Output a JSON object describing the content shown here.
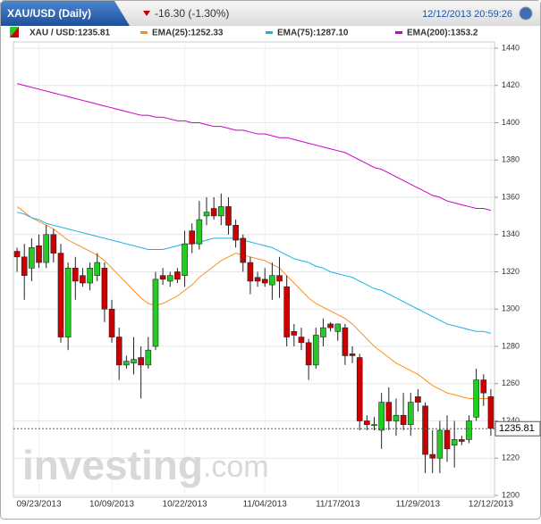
{
  "header": {
    "title": "XAU/USD (Daily)",
    "change": "-16.30 (-1.30%)",
    "timestamp": "12/12/2013 20:59:26"
  },
  "chart_data": {
    "type": "candlestick",
    "legend": [
      {
        "text": "XAU / USD:1235.81",
        "color": "#cc0000"
      },
      {
        "text": "EMA(25):1252.33",
        "color": "#ff8c1a"
      },
      {
        "text": "EMA(75):1287.10",
        "color": "#1ab2e6"
      },
      {
        "text": "EMA(200):1353.2",
        "color": "#cc00cc"
      }
    ],
    "up_color": "#22cc22",
    "down_color": "#cc0000",
    "open": [
      1331,
      1328,
      1322,
      1334,
      1325,
      1340,
      1330,
      1285,
      1322,
      1318,
      1314,
      1318,
      1322,
      1300,
      1285,
      1270,
      1271,
      1274,
      1270,
      1280,
      1318,
      1315,
      1320,
      1318,
      1342,
      1335,
      1350,
      1354,
      1350,
      1355,
      1345,
      1338,
      1325,
      1317,
      1316,
      1313,
      1318,
      1312,
      1288,
      1285,
      1282,
      1270,
      1285,
      1292,
      1288,
      1290,
      1276,
      1274,
      1240,
      1238,
      1235,
      1250,
      1240,
      1243,
      1238,
      1253,
      1248,
      1222,
      1220,
      1235,
      1227,
      1230,
      1230,
      1242,
      1262,
      1253
    ],
    "high": [
      1333,
      1335,
      1338,
      1340,
      1345,
      1343,
      1335,
      1325,
      1328,
      1322,
      1325,
      1330,
      1325,
      1305,
      1290,
      1275,
      1285,
      1280,
      1285,
      1320,
      1322,
      1320,
      1322,
      1342,
      1346,
      1358,
      1360,
      1360,
      1362,
      1360,
      1348,
      1340,
      1328,
      1320,
      1322,
      1325,
      1328,
      1318,
      1292,
      1290,
      1284,
      1290,
      1295,
      1293,
      1292,
      1292,
      1280,
      1276,
      1243,
      1242,
      1255,
      1258,
      1252,
      1255,
      1255,
      1257,
      1250,
      1235,
      1240,
      1243,
      1240,
      1232,
      1243,
      1268,
      1265,
      1257
    ],
    "low": [
      1320,
      1305,
      1315,
      1322,
      1322,
      1325,
      1282,
      1278,
      1305,
      1312,
      1310,
      1315,
      1293,
      1282,
      1262,
      1268,
      1265,
      1252,
      1268,
      1278,
      1313,
      1312,
      1314,
      1312,
      1330,
      1332,
      1345,
      1348,
      1345,
      1340,
      1333,
      1320,
      1308,
      1312,
      1312,
      1305,
      1306,
      1280,
      1280,
      1278,
      1262,
      1268,
      1280,
      1288,
      1283,
      1270,
      1271,
      1235,
      1235,
      1235,
      1225,
      1235,
      1232,
      1235,
      1232,
      1245,
      1212,
      1212,
      1212,
      1218,
      1215,
      1227,
      1228,
      1240,
      1248,
      1232
    ],
    "close": [
      1328,
      1318,
      1333,
      1325,
      1340,
      1330,
      1285,
      1322,
      1315,
      1314,
      1322,
      1325,
      1300,
      1285,
      1270,
      1272,
      1273,
      1270,
      1278,
      1316,
      1316,
      1318,
      1316,
      1335,
      1335,
      1348,
      1352,
      1350,
      1355,
      1345,
      1337,
      1325,
      1315,
      1315,
      1314,
      1318,
      1315,
      1285,
      1286,
      1282,
      1270,
      1286,
      1290,
      1290,
      1292,
      1275,
      1275,
      1240,
      1238,
      1238,
      1250,
      1240,
      1243,
      1238,
      1250,
      1250,
      1222,
      1220,
      1235,
      1225,
      1230,
      1229,
      1240,
      1262,
      1255,
      1236
    ],
    "series": [
      {
        "name": "EMA(25)",
        "color": "#ff8c1a",
        "values": [
          1355,
          1352,
          1349,
          1347,
          1345,
          1343,
          1340,
          1337,
          1335,
          1333,
          1331,
          1329,
          1326,
          1322,
          1318,
          1314,
          1310,
          1306,
          1303,
          1302,
          1303,
          1305,
          1307,
          1310,
          1313,
          1317,
          1320,
          1323,
          1326,
          1328,
          1330,
          1329,
          1328,
          1327,
          1326,
          1324,
          1322,
          1318,
          1314,
          1310,
          1306,
          1303,
          1301,
          1299,
          1297,
          1295,
          1292,
          1288,
          1284,
          1280,
          1277,
          1274,
          1271,
          1269,
          1267,
          1265,
          1262,
          1259,
          1257,
          1255,
          1254,
          1253,
          1252,
          1252,
          1252,
          1252
        ]
      },
      {
        "name": "EMA(75)",
        "color": "#1ab2e6",
        "values": [
          1352,
          1351,
          1349,
          1348,
          1346,
          1345,
          1344,
          1343,
          1342,
          1341,
          1340,
          1339,
          1338,
          1337,
          1336,
          1335,
          1334,
          1333,
          1332,
          1332,
          1332,
          1333,
          1334,
          1335,
          1335,
          1336,
          1337,
          1338,
          1338,
          1338,
          1338,
          1337,
          1336,
          1335,
          1334,
          1333,
          1331,
          1329,
          1327,
          1326,
          1325,
          1323,
          1322,
          1320,
          1319,
          1318,
          1317,
          1315,
          1313,
          1311,
          1310,
          1308,
          1306,
          1304,
          1302,
          1300,
          1298,
          1296,
          1294,
          1292,
          1291,
          1290,
          1289,
          1288,
          1288,
          1287
        ]
      },
      {
        "name": "EMA(200)",
        "color": "#cc00cc",
        "values": [
          1421,
          1420,
          1419,
          1418,
          1417,
          1416,
          1415,
          1414,
          1413,
          1412,
          1411,
          1410,
          1409,
          1408,
          1407,
          1406,
          1405,
          1404,
          1404,
          1403,
          1403,
          1402,
          1401,
          1401,
          1400,
          1400,
          1399,
          1398,
          1398,
          1397,
          1396,
          1396,
          1395,
          1394,
          1394,
          1393,
          1392,
          1392,
          1391,
          1390,
          1389,
          1388,
          1387,
          1386,
          1385,
          1384,
          1382,
          1380,
          1378,
          1376,
          1375,
          1373,
          1371,
          1369,
          1367,
          1365,
          1363,
          1361,
          1360,
          1358,
          1357,
          1356,
          1355,
          1354,
          1354,
          1353
        ]
      }
    ],
    "last_price": 1235.81,
    "xlim": [
      -0.5,
      65.5
    ],
    "xticks": [
      {
        "value": 3,
        "label": "09/23/2013"
      },
      {
        "value": 13,
        "label": "10/09/2013"
      },
      {
        "value": 23,
        "label": "10/22/2013"
      },
      {
        "value": 34,
        "label": "11/04/2013"
      },
      {
        "value": 44,
        "label": "11/17/2013"
      },
      {
        "value": 55,
        "label": "11/29/2013"
      },
      {
        "value": 65,
        "label": "12/12/2013"
      }
    ],
    "ylim": [
      1200,
      1440
    ],
    "yticks": [
      1200,
      1220,
      1240,
      1260,
      1280,
      1300,
      1320,
      1340,
      1360,
      1380,
      1400,
      1420,
      1440
    ],
    "grid": true,
    "watermark": {
      "brand": "investing",
      "suffix": ".com"
    }
  }
}
